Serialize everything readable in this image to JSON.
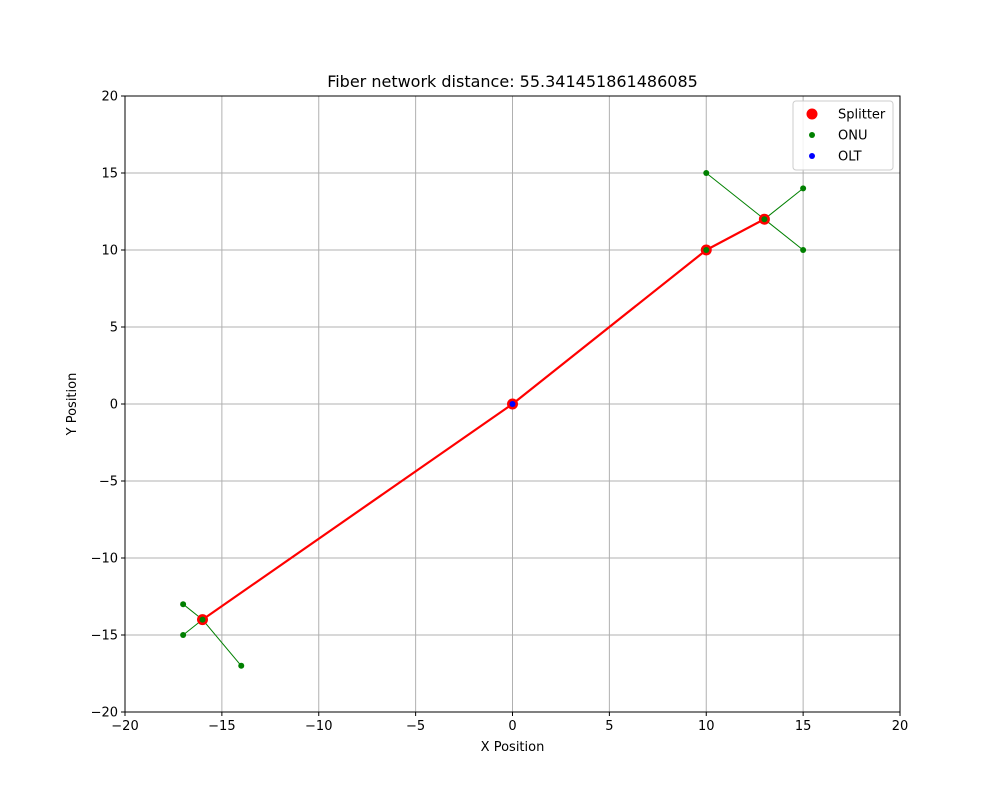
{
  "chart_data": {
    "type": "scatter",
    "title": "Fiber network distance: 55.341451861486085",
    "xlabel": "X Position",
    "ylabel": "Y Position",
    "xlim": [
      -20,
      20
    ],
    "ylim": [
      -20,
      20
    ],
    "xticks": [
      -20,
      -15,
      -10,
      -5,
      0,
      5,
      10,
      15,
      20
    ],
    "yticks": [
      -20,
      -15,
      -10,
      -5,
      0,
      5,
      10,
      15,
      20
    ],
    "grid": true,
    "legend": "top-right",
    "trunk_links": {
      "color": "#ff0000",
      "segments": [
        [
          [
            0,
            0
          ],
          [
            10,
            10
          ]
        ],
        [
          [
            10,
            10
          ],
          [
            13,
            12
          ]
        ],
        [
          [
            0,
            0
          ],
          [
            -16,
            -14
          ]
        ]
      ]
    },
    "drop_links": {
      "color": "#008000",
      "segments": [
        [
          [
            13,
            12
          ],
          [
            10,
            15
          ]
        ],
        [
          [
            13,
            12
          ],
          [
            15,
            14
          ]
        ],
        [
          [
            13,
            12
          ],
          [
            15,
            10
          ]
        ],
        [
          [
            -16,
            -14
          ],
          [
            -17,
            -13
          ]
        ],
        [
          [
            -16,
            -14
          ],
          [
            -17,
            -15
          ]
        ],
        [
          [
            -16,
            -14
          ],
          [
            -14,
            -17
          ]
        ]
      ]
    },
    "series": [
      {
        "name": "Splitter",
        "color": "#ff0000",
        "size": "large",
        "points": [
          [
            10,
            10
          ],
          [
            13,
            12
          ],
          [
            -16,
            -14
          ],
          [
            0,
            0
          ]
        ]
      },
      {
        "name": "ONU",
        "color": "#008000",
        "size": "small",
        "points": [
          [
            10,
            15
          ],
          [
            15,
            14
          ],
          [
            15,
            10
          ],
          [
            -17,
            -13
          ],
          [
            -17,
            -15
          ],
          [
            -14,
            -17
          ],
          [
            10,
            10
          ],
          [
            13,
            12
          ],
          [
            -16,
            -14
          ]
        ]
      },
      {
        "name": "OLT",
        "color": "#0000ff",
        "size": "small",
        "points": [
          [
            0,
            0
          ]
        ]
      }
    ]
  }
}
